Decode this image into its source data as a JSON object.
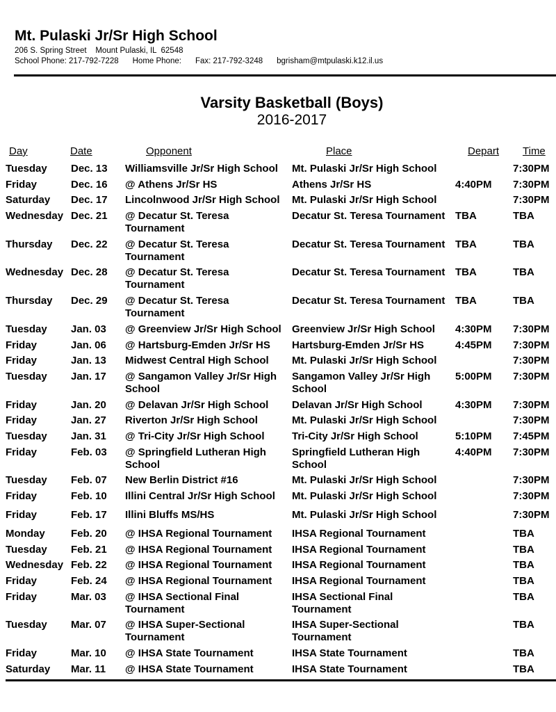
{
  "header": {
    "school": "Mt. Pulaski Jr/Sr High School",
    "address": "206 S. Spring Street    Mount Pulaski, IL  62548",
    "school_phone": "School Phone: 217-792-7228",
    "home_phone": "Home Phone:",
    "fax": "Fax: 217-792-3248",
    "email": "bgrisham@mtpulaski.k12.il.us"
  },
  "title": "Varsity Basketball (Boys)",
  "season": "2016-2017",
  "columns": [
    "Day",
    "Date",
    "Opponent",
    "Place",
    "Depart",
    "Time"
  ],
  "rows": [
    [
      "Tuesday",
      "Dec. 13",
      "Williamsville Jr/Sr High School",
      "Mt. Pulaski Jr/Sr High School",
      "",
      "7:30PM"
    ],
    [
      "Friday",
      "Dec. 16",
      "@ Athens Jr/Sr HS",
      "Athens Jr/Sr HS",
      "4:40PM",
      "7:30PM"
    ],
    [
      "Saturday",
      "Dec. 17",
      "Lincolnwood Jr/Sr High School",
      "Mt. Pulaski Jr/Sr High School",
      "",
      "7:30PM"
    ],
    [
      "Wednesday",
      "Dec. 21",
      "@ Decatur St. Teresa Tournament",
      "Decatur St. Teresa Tournament",
      "TBA",
      "TBA"
    ],
    [
      "Thursday",
      "Dec. 22",
      "@ Decatur St. Teresa Tournament",
      "Decatur St. Teresa Tournament",
      "TBA",
      "TBA"
    ],
    [
      "Wednesday",
      "Dec. 28",
      "@ Decatur St. Teresa Tournament",
      "Decatur St. Teresa Tournament",
      "TBA",
      "TBA"
    ],
    [
      "Thursday",
      "Dec. 29",
      "@ Decatur St. Teresa Tournament",
      "Decatur St. Teresa Tournament",
      "TBA",
      "TBA"
    ],
    [
      "Tuesday",
      "Jan. 03",
      "@ Greenview Jr/Sr High School",
      "Greenview Jr/Sr High School",
      "4:30PM",
      "7:30PM"
    ],
    [
      "Friday",
      "Jan. 06",
      "@ Hartsburg-Emden Jr/Sr HS",
      "Hartsburg-Emden Jr/Sr HS",
      "4:45PM",
      "7:30PM"
    ],
    [
      "Friday",
      "Jan. 13",
      "Midwest Central High School",
      "Mt. Pulaski Jr/Sr High School",
      "",
      "7:30PM"
    ],
    [
      "Tuesday",
      "Jan. 17",
      "@ Sangamon Valley Jr/Sr High School",
      "Sangamon Valley Jr/Sr High School",
      "5:00PM",
      "7:30PM"
    ],
    [
      "Friday",
      "Jan. 20",
      "@ Delavan Jr/Sr High School",
      "Delavan Jr/Sr High School",
      "4:30PM",
      "7:30PM"
    ],
    [
      "Friday",
      "Jan. 27",
      "Riverton Jr/Sr High School",
      "Mt. Pulaski Jr/Sr High School",
      "",
      "7:30PM"
    ],
    [
      "Tuesday",
      "Jan. 31",
      "@ Tri-City Jr/Sr High School",
      "Tri-City Jr/Sr High School",
      "5:10PM",
      "7:45PM"
    ],
    [
      "Friday",
      "Feb. 03",
      "@ Springfield Lutheran High School",
      "Springfield Lutheran High School",
      "4:40PM",
      "7:30PM"
    ],
    [
      "Tuesday",
      "Feb. 07",
      "New Berlin District #16",
      "Mt. Pulaski Jr/Sr High School",
      "",
      "7:30PM"
    ],
    [
      "Friday",
      "Feb. 10",
      "Illini Central Jr/Sr High School",
      "Mt. Pulaski Jr/Sr High School",
      "",
      "7:30PM"
    ],
    [
      "Friday",
      "Feb. 17",
      "Illini Bluffs MS/HS",
      "Mt. Pulaski Jr/Sr High School",
      "",
      "7:30PM"
    ],
    [
      "Monday",
      "Feb. 20",
      "@ IHSA Regional Tournament",
      "IHSA Regional Tournament",
      "",
      "TBA"
    ],
    [
      "Tuesday",
      "Feb. 21",
      "@ IHSA Regional Tournament",
      "IHSA Regional Tournament",
      "",
      "TBA"
    ],
    [
      "Wednesday",
      "Feb. 22",
      "@ IHSA Regional Tournament",
      "IHSA Regional Tournament",
      "",
      "TBA"
    ],
    [
      "Friday",
      "Feb. 24",
      "@ IHSA Regional Tournament",
      "IHSA Regional Tournament",
      "",
      "TBA"
    ],
    [
      "Friday",
      "Mar. 03",
      "@ IHSA Sectional Final Tournament",
      "IHSA Sectional Final Tournament",
      "",
      "TBA"
    ],
    [
      "Tuesday",
      "Mar. 07",
      "@ IHSA Super-Sectional Tournament",
      "IHSA Super-Sectional Tournament",
      "",
      "TBA"
    ],
    [
      "Friday",
      "Mar. 10",
      "@ IHSA State Tournament",
      "IHSA State Tournament",
      "",
      "TBA"
    ],
    [
      "Saturday",
      "Mar. 11",
      "@ IHSA State Tournament",
      "IHSA State Tournament",
      "",
      "TBA"
    ]
  ]
}
